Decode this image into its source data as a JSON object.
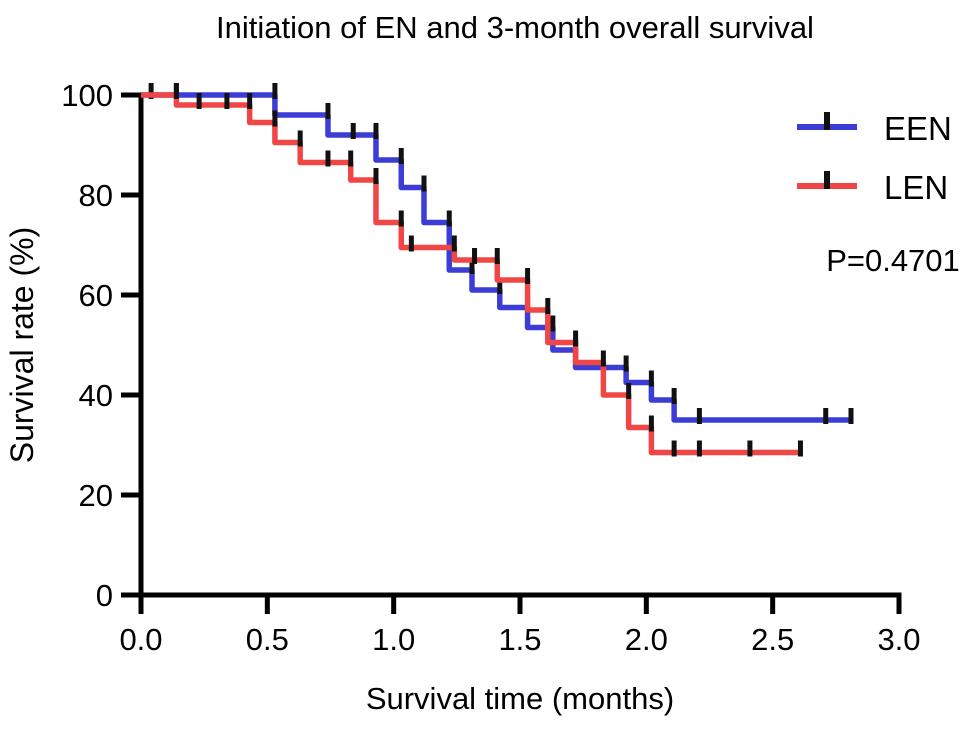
{
  "chart_data": {
    "type": "line",
    "subtype": "kaplan-meier-step",
    "title": "Initiation of EN and 3-month overall survival",
    "xlabel": "Survival time (months)",
    "ylabel": "Survival rate (%)",
    "xlim": [
      0.0,
      3.0
    ],
    "ylim": [
      0,
      100
    ],
    "xticks": [
      0.0,
      0.5,
      1.0,
      1.5,
      2.0,
      2.5,
      3.0
    ],
    "xtick_labels": [
      "0.0",
      "0.5",
      "1.0",
      "1.5",
      "2.0",
      "2.5",
      "3.0"
    ],
    "yticks": [
      0,
      20,
      40,
      60,
      80,
      100
    ],
    "ytick_labels": [
      "0",
      "20",
      "40",
      "60",
      "80",
      "100"
    ],
    "grid": false,
    "legend_position": "top-right",
    "annotation": "P=0.4701",
    "axis_color": "#000000",
    "censor_tick_color": "#111111",
    "series": [
      {
        "name": "EEN",
        "color": "#3c3cd7",
        "steps": [
          [
            0,
            100
          ],
          [
            0.53,
            96
          ],
          [
            0.74,
            92
          ],
          [
            0.93,
            87
          ],
          [
            1.03,
            81.5
          ],
          [
            1.12,
            74.5
          ],
          [
            1.22,
            65
          ],
          [
            1.31,
            61
          ],
          [
            1.42,
            57.5
          ],
          [
            1.53,
            53.5
          ],
          [
            1.63,
            49
          ],
          [
            1.72,
            45.5
          ],
          [
            1.92,
            42.5
          ],
          [
            2.02,
            39
          ],
          [
            2.11,
            35
          ]
        ],
        "end_time": 2.82,
        "censors": [
          [
            0.04,
            100
          ],
          [
            0.14,
            100
          ],
          [
            0.84,
            92
          ],
          [
            2.21,
            35
          ],
          [
            2.71,
            35
          ],
          [
            2.81,
            35
          ]
        ]
      },
      {
        "name": "LEN",
        "color": "#f04646",
        "steps": [
          [
            0,
            100
          ],
          [
            0.14,
            98
          ],
          [
            0.43,
            94.5
          ],
          [
            0.53,
            90.5
          ],
          [
            0.63,
            86.5
          ],
          [
            0.83,
            83
          ],
          [
            0.93,
            74.5
          ],
          [
            1.03,
            69.5
          ],
          [
            1.24,
            67
          ],
          [
            1.41,
            63
          ],
          [
            1.53,
            57
          ],
          [
            1.61,
            50.5
          ],
          [
            1.72,
            46.5
          ],
          [
            1.83,
            40
          ],
          [
            1.93,
            33.5
          ],
          [
            2.02,
            28.5
          ]
        ],
        "end_time": 2.62,
        "censors": [
          [
            0.23,
            98
          ],
          [
            0.34,
            98
          ],
          [
            0.74,
            86.5
          ],
          [
            1.07,
            69.5
          ],
          [
            1.32,
            67
          ],
          [
            2.11,
            28.5
          ],
          [
            2.21,
            28.5
          ],
          [
            2.41,
            28.5
          ],
          [
            2.61,
            28.5
          ]
        ]
      }
    ]
  }
}
